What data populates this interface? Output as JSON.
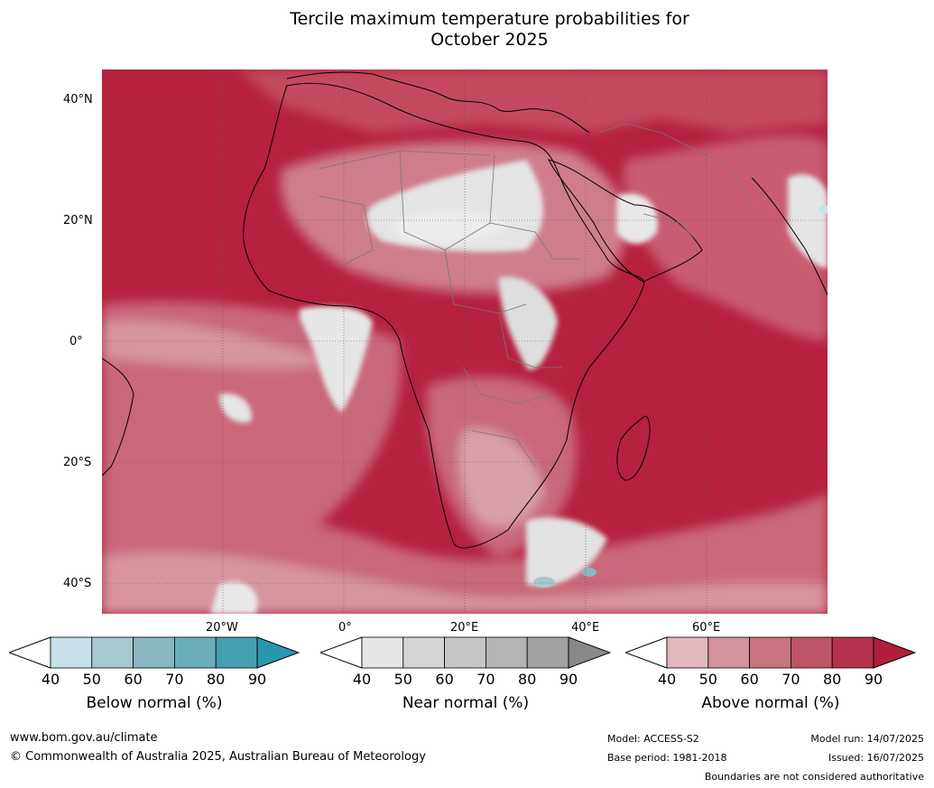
{
  "title_line1": "Tercile maximum temperature probabilities for",
  "title_line2": "October 2025",
  "lat_labels": [
    "40°N",
    "20°N",
    "0°",
    "20°S",
    "40°S"
  ],
  "lon_labels": [
    "20°W",
    "0°",
    "20°E",
    "40°E",
    "60°E"
  ],
  "colorbars": [
    {
      "title": "Below normal (%)",
      "ticks": [
        "40",
        "50",
        "60",
        "70",
        "80",
        "90"
      ],
      "colors": [
        "#c8e1e8",
        "#a7c8ce",
        "#89b6c0",
        "#6baebb",
        "#459fb1"
      ],
      "over": "#2a96b0"
    },
    {
      "title": "Near normal (%)",
      "ticks": [
        "40",
        "50",
        "60",
        "70",
        "80",
        "90"
      ],
      "colors": [
        "#e6e6e6",
        "#d5d5d5",
        "#c6c6c6",
        "#b5b5b5",
        "#a2a2a2"
      ],
      "over": "#888888"
    },
    {
      "title": "Above normal (%)",
      "ticks": [
        "40",
        "50",
        "60",
        "70",
        "80",
        "90"
      ],
      "colors": [
        "#e2b7be",
        "#d3929c",
        "#c9747f",
        "#be5466",
        "#b5324c"
      ],
      "over": "#b01e3c"
    }
  ],
  "footer": {
    "website": "www.bom.gov.au/climate",
    "copyright": "© Commonwealth of Australia 2025, Australian Bureau of Meteorology",
    "model": "Model: ACCESS-S2",
    "base_period": "Base period: 1981-2018",
    "model_run": "Model run: 14/07/2025",
    "issued": "Issued: 16/07/2025",
    "disclaimer": "Boundaries are not considered authoritative"
  }
}
